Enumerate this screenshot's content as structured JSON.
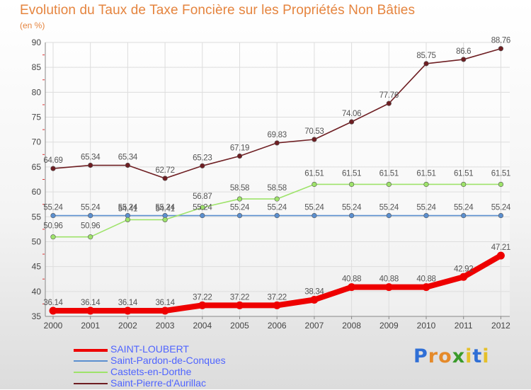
{
  "chart_data": {
    "type": "line",
    "title": "Evolution du Taux de Taxe Foncière sur les Propriétés Non Bâties",
    "subtitle": "(en %)",
    "xlabel": "",
    "ylabel": "(en %)",
    "x": [
      "2000",
      "2001",
      "2002",
      "2003",
      "2004",
      "2005",
      "2006",
      "2007",
      "2008",
      "2009",
      "2010",
      "2011",
      "2012"
    ],
    "ylim": [
      35,
      90
    ],
    "yticks": [
      35,
      40,
      45,
      50,
      55,
      60,
      65,
      70,
      75,
      80,
      85,
      90
    ],
    "grid": true,
    "legend_position": "bottom-left",
    "series": [
      {
        "name": "SAINT-LOUBERT",
        "color": "#ee0000",
        "values": [
          36.14,
          36.14,
          36.14,
          36.14,
          37.22,
          37.22,
          37.22,
          38.34,
          40.88,
          40.88,
          40.88,
          42.92,
          47.21
        ],
        "labels": [
          "36.14",
          "36.14",
          "36.14",
          "36.14",
          "37.22",
          "37.22",
          "37.22",
          "38.34",
          "40.88",
          "40.88",
          "40.88",
          "42.92",
          "47.21"
        ]
      },
      {
        "name": "Saint-Pardon-de-Conques",
        "color": "#5b8fcf",
        "values": [
          55.24,
          55.24,
          55.24,
          55.24,
          55.24,
          55.24,
          55.24,
          55.24,
          55.24,
          55.24,
          55.24,
          55.24,
          55.24
        ],
        "labels": [
          "55.24",
          "55.24",
          "55.24",
          "55.24",
          "55.24",
          "55.24",
          "55.24",
          "55.24",
          "55.24",
          "55.24",
          "55.24",
          "55.24",
          "55.24"
        ]
      },
      {
        "name": "Castets-en-Dorthe",
        "color": "#9ee36a",
        "values": [
          50.96,
          50.96,
          54.41,
          54.41,
          56.87,
          58.58,
          58.58,
          61.51,
          61.51,
          61.51,
          61.51,
          61.51,
          61.51
        ],
        "labels": [
          "50.96",
          "50.96",
          "54.41",
          "54.41",
          "56.87",
          "58.58",
          "58.58",
          "61.51",
          "61.51",
          "61.51",
          "61.51",
          "61.51",
          "61.51"
        ]
      },
      {
        "name": "Saint-Pierre-d'Aurillac",
        "color": "#6e1e22",
        "values": [
          64.69,
          65.34,
          65.34,
          62.72,
          65.23,
          67.19,
          69.83,
          70.53,
          74.06,
          77.76,
          85.75,
          86.6,
          88.76
        ],
        "labels": [
          "64.69",
          "65.34",
          "65.34",
          "62.72",
          "65.23",
          "67.19",
          "69.83",
          "70.53",
          "74.06",
          "77.76",
          "85.75",
          "86.6",
          "88.76"
        ]
      }
    ]
  },
  "logo": {
    "letters": [
      "P",
      "r",
      "o",
      "x",
      "i",
      "t",
      "i"
    ],
    "colors": [
      "#2f6fd6",
      "#e58a2a",
      "#e58a2a",
      "#3a9a2a",
      "#e5c02a",
      "#2f6fd6",
      "#e5c02a"
    ]
  }
}
